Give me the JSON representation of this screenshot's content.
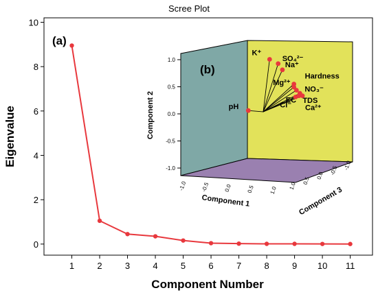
{
  "chart_data": [
    {
      "type": "line",
      "title": "Scree Plot",
      "panel_label": "(a)",
      "xlabel": "Component Number",
      "ylabel": "Eigenvalue",
      "x": [
        1,
        2,
        3,
        4,
        5,
        6,
        7,
        8,
        9,
        10,
        11
      ],
      "values": [
        8.95,
        1.05,
        0.45,
        0.35,
        0.16,
        0.04,
        0.02,
        0.01,
        0.01,
        0.005,
        0.003
      ],
      "xlim": [
        0,
        11.8
      ],
      "ylim": [
        -0.5,
        10.2
      ],
      "yticks": [
        0,
        2,
        4,
        6,
        8,
        10
      ],
      "xticks": [
        1,
        2,
        3,
        4,
        5,
        6,
        7,
        8,
        9,
        10,
        11
      ],
      "line_color": "#e8383d",
      "grid": false
    },
    {
      "type": "scatter",
      "panel_label": "(b)",
      "xlabel": "Component 1",
      "ylabel": "Component 2",
      "zlabel": "Component 3",
      "xticks": [
        "-1.0",
        "-0.5",
        "0.0",
        "0.5",
        "1.0"
      ],
      "yticks": [
        "1.0",
        "0.5",
        "0.0",
        "-0.5",
        "-1.0"
      ],
      "zticks": [
        "1.0",
        "0.5",
        "0.0",
        "-0.5",
        "-1.0"
      ],
      "colors": {
        "left_wall": "#7fa8a6",
        "back_wall": "#e2e25a",
        "floor": "#9a80b0",
        "point": "#e8383d"
      },
      "points": [
        {
          "label": "K⁺",
          "c1": 0.15,
          "c2": 0.85,
          "c3": -0.1
        },
        {
          "label": "SO₄²⁻",
          "c1": 0.35,
          "c2": 0.78,
          "c3": -0.1
        },
        {
          "label": "Na⁺",
          "c1": 0.45,
          "c2": 0.68,
          "c3": -0.1
        },
        {
          "label": "Hardness",
          "c1": 0.72,
          "c2": 0.45,
          "c3": -0.1
        },
        {
          "label": "Mg²⁺",
          "c1": 0.72,
          "c2": 0.4,
          "c3": -0.1
        },
        {
          "label": "NO₃⁻",
          "c1": 0.78,
          "c2": 0.35,
          "c3": -0.1
        },
        {
          "label": "TDS",
          "c1": 0.86,
          "c2": 0.3,
          "c3": -0.1
        },
        {
          "label": "EC",
          "c1": 0.84,
          "c2": 0.26,
          "c3": -0.1
        },
        {
          "label": "Cl⁻",
          "c1": 0.76,
          "c2": 0.24,
          "c3": -0.1
        },
        {
          "label": "Ca²⁺",
          "c1": 0.92,
          "c2": 0.26,
          "c3": -0.1
        },
        {
          "label": "pH",
          "c1": -0.35,
          "c2": 0.02,
          "c3": -0.1
        }
      ]
    }
  ]
}
